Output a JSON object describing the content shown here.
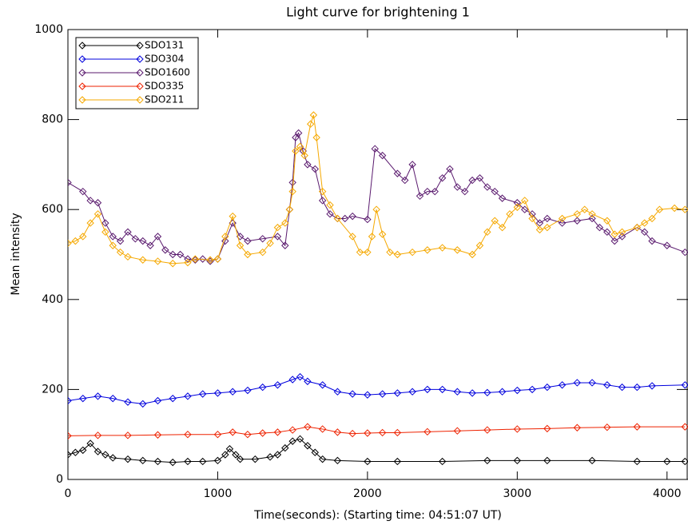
{
  "chart_data": {
    "type": "line",
    "title": "Light curve for brightening 1",
    "xlabel": "Time(seconds): (Starting time: 04:51:07 UT)",
    "ylabel": "Mean intensity",
    "xlim": [
      0,
      4140
    ],
    "xticks": [
      0,
      1000,
      2000,
      3000,
      4000
    ],
    "ylim": [
      0,
      1000
    ],
    "yticks": [
      0,
      200,
      400,
      600,
      800,
      1000
    ],
    "legend": "top-left",
    "series": [
      {
        "name": "SDO131",
        "color": "#000000",
        "x": [
          0,
          50,
          100,
          150,
          200,
          250,
          300,
          400,
          500,
          600,
          700,
          800,
          900,
          1000,
          1050,
          1080,
          1120,
          1150,
          1250,
          1350,
          1400,
          1450,
          1500,
          1550,
          1600,
          1650,
          1700,
          1800,
          2000,
          2200,
          2500,
          2800,
          3000,
          3200,
          3500,
          3800,
          4000,
          4120
        ],
        "values": [
          55,
          60,
          65,
          80,
          62,
          55,
          48,
          45,
          42,
          40,
          38,
          40,
          40,
          42,
          55,
          68,
          55,
          45,
          45,
          50,
          55,
          70,
          85,
          90,
          75,
          60,
          45,
          42,
          40,
          40,
          40,
          42,
          42,
          42,
          42,
          40,
          40,
          40
        ]
      },
      {
        "name": "SDO304",
        "color": "#0000dd",
        "x": [
          0,
          100,
          200,
          300,
          400,
          500,
          600,
          700,
          800,
          900,
          1000,
          1100,
          1200,
          1300,
          1400,
          1500,
          1550,
          1600,
          1700,
          1800,
          1900,
          2000,
          2100,
          2200,
          2300,
          2400,
          2500,
          2600,
          2700,
          2800,
          2900,
          3000,
          3100,
          3200,
          3300,
          3400,
          3500,
          3600,
          3700,
          3800,
          3900,
          4120
        ],
        "values": [
          175,
          180,
          185,
          180,
          172,
          168,
          175,
          180,
          185,
          190,
          192,
          195,
          198,
          205,
          210,
          222,
          228,
          218,
          210,
          195,
          190,
          188,
          190,
          192,
          195,
          200,
          200,
          195,
          192,
          193,
          195,
          198,
          200,
          205,
          210,
          215,
          215,
          210,
          205,
          205,
          208,
          210
        ]
      },
      {
        "name": "SDO1600",
        "color": "#5a1a6e",
        "x": [
          0,
          100,
          150,
          200,
          250,
          300,
          350,
          400,
          450,
          500,
          550,
          600,
          650,
          700,
          750,
          800,
          850,
          900,
          950,
          1000,
          1050,
          1100,
          1150,
          1200,
          1300,
          1400,
          1450,
          1480,
          1500,
          1520,
          1540,
          1570,
          1600,
          1650,
          1700,
          1750,
          1800,
          1850,
          1900,
          2000,
          2050,
          2100,
          2200,
          2250,
          2300,
          2350,
          2400,
          2450,
          2500,
          2550,
          2600,
          2650,
          2700,
          2750,
          2800,
          2850,
          2900,
          3000,
          3050,
          3100,
          3150,
          3200,
          3300,
          3400,
          3500,
          3550,
          3600,
          3650,
          3700,
          3800,
          3850,
          3900,
          4000,
          4120
        ],
        "values": [
          660,
          640,
          620,
          615,
          570,
          540,
          530,
          550,
          535,
          530,
          520,
          540,
          510,
          500,
          500,
          490,
          488,
          490,
          485,
          490,
          530,
          570,
          540,
          530,
          535,
          540,
          520,
          600,
          660,
          760,
          770,
          730,
          700,
          690,
          620,
          590,
          580,
          580,
          585,
          578,
          735,
          720,
          680,
          665,
          700,
          630,
          640,
          640,
          670,
          690,
          650,
          640,
          665,
          670,
          650,
          640,
          625,
          615,
          600,
          590,
          570,
          580,
          570,
          575,
          580,
          560,
          550,
          530,
          540,
          560,
          550,
          530,
          520,
          505
        ]
      },
      {
        "name": "SDO335",
        "color": "#ee2200",
        "x": [
          0,
          200,
          400,
          600,
          800,
          1000,
          1100,
          1200,
          1300,
          1400,
          1500,
          1600,
          1700,
          1800,
          1900,
          2000,
          2100,
          2200,
          2400,
          2600,
          2800,
          3000,
          3200,
          3400,
          3600,
          3800,
          4120
        ],
        "values": [
          97,
          98,
          98,
          99,
          100,
          100,
          105,
          100,
          103,
          105,
          110,
          117,
          112,
          105,
          102,
          103,
          104,
          104,
          106,
          108,
          110,
          112,
          113,
          115,
          116,
          117,
          117
        ]
      },
      {
        "name": "SDO211",
        "color": "#f5a800",
        "x": [
          0,
          50,
          100,
          150,
          200,
          250,
          300,
          350,
          400,
          500,
          600,
          700,
          800,
          850,
          950,
          1000,
          1050,
          1100,
          1150,
          1200,
          1300,
          1350,
          1400,
          1450,
          1480,
          1500,
          1520,
          1550,
          1580,
          1620,
          1640,
          1660,
          1700,
          1750,
          1800,
          1900,
          1950,
          2000,
          2030,
          2060,
          2100,
          2150,
          2200,
          2300,
          2400,
          2500,
          2600,
          2700,
          2750,
          2800,
          2850,
          2900,
          2950,
          3000,
          3050,
          3100,
          3150,
          3200,
          3300,
          3400,
          3450,
          3500,
          3600,
          3650,
          3700,
          3800,
          3850,
          3900,
          3950,
          4050,
          4120
        ],
        "values": [
          525,
          530,
          540,
          570,
          590,
          550,
          520,
          505,
          495,
          488,
          485,
          480,
          482,
          490,
          488,
          490,
          540,
          585,
          520,
          500,
          505,
          525,
          560,
          570,
          600,
          640,
          730,
          740,
          720,
          790,
          810,
          760,
          640,
          610,
          580,
          540,
          505,
          505,
          540,
          600,
          545,
          505,
          500,
          505,
          510,
          515,
          510,
          500,
          520,
          550,
          575,
          560,
          590,
          605,
          620,
          580,
          555,
          560,
          580,
          590,
          600,
          590,
          575,
          545,
          550,
          560,
          570,
          580,
          600,
          603,
          600
        ]
      }
    ]
  }
}
